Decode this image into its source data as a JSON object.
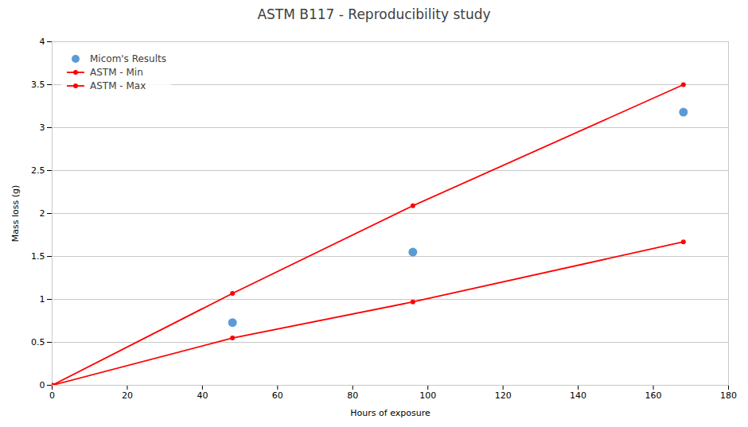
{
  "chart_data": {
    "type": "line",
    "title": "ASTM B117 - Reproducibility study",
    "xlabel": "Hours of exposure",
    "ylabel": "Mass loss (g)",
    "x": [
      0,
      48,
      96,
      168
    ],
    "series": [
      {
        "name": "Micom's Results",
        "type": "scatter",
        "marker": "circle",
        "color": "#5b9bd5",
        "values": [
          null,
          0.73,
          1.55,
          3.18
        ]
      },
      {
        "name": "ASTM - Min",
        "type": "line",
        "marker": "circle",
        "color": "#ff0000",
        "values": [
          0,
          0.55,
          0.97,
          1.67
        ]
      },
      {
        "name": "ASTM - Max",
        "type": "line",
        "marker": "circle",
        "color": "#ff0000",
        "values": [
          0,
          1.07,
          2.09,
          3.5
        ]
      }
    ],
    "xlim": [
      0,
      180
    ],
    "ylim": [
      0,
      4
    ],
    "xticks": [
      0,
      20,
      40,
      60,
      80,
      100,
      120,
      140,
      160,
      180
    ],
    "yticks": [
      0,
      0.5,
      1,
      1.5,
      2,
      2.5,
      3,
      3.5,
      4
    ],
    "grid": "y",
    "legend": "upper left"
  }
}
